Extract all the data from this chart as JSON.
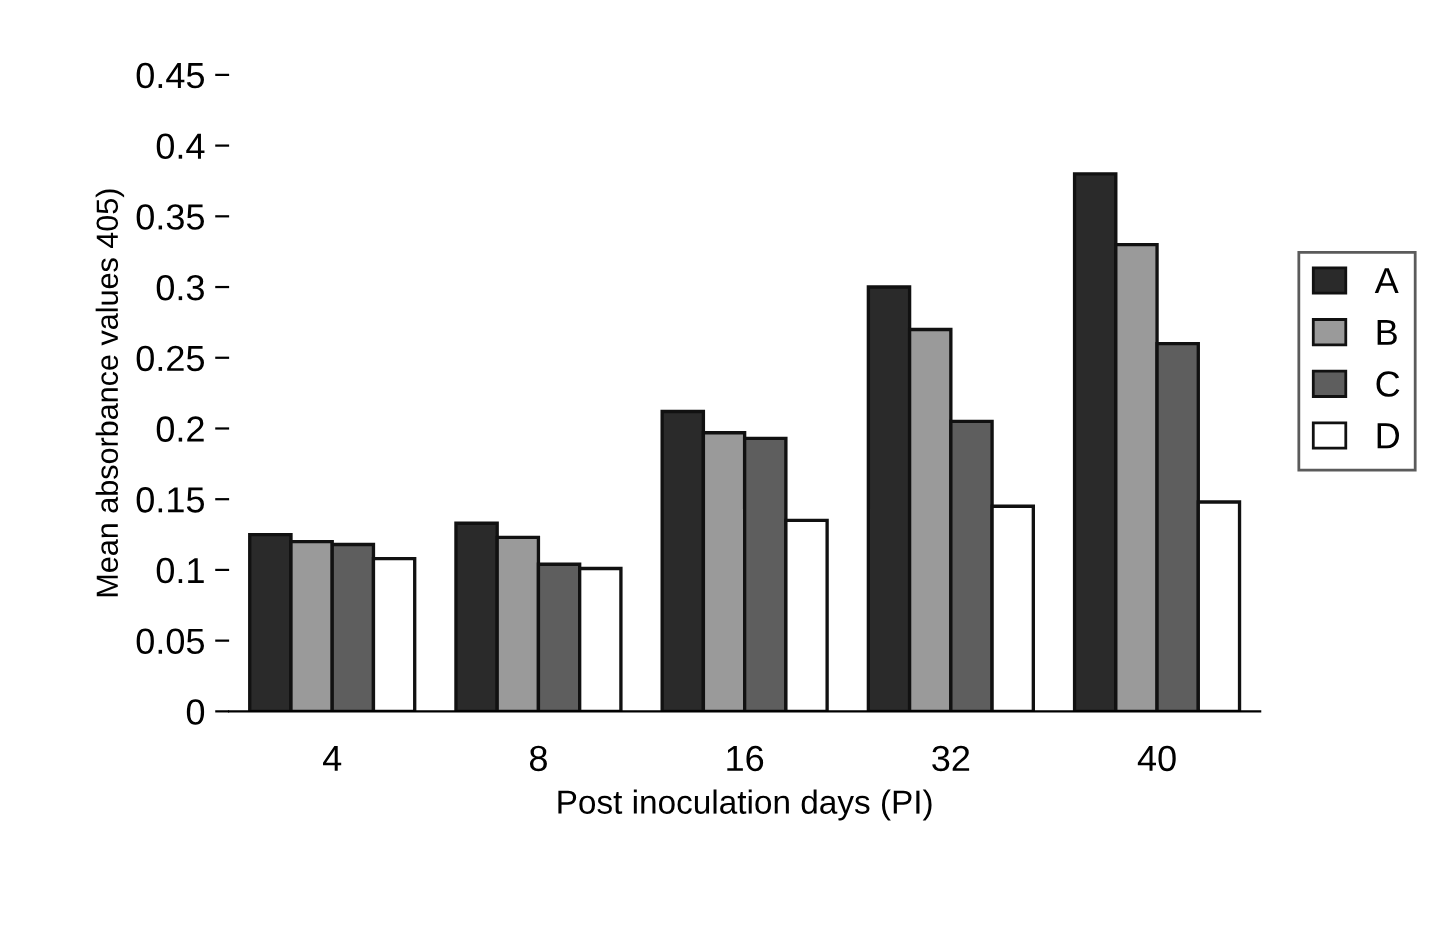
{
  "chart_data": {
    "type": "bar",
    "xlabel": "Post inoculation days (PI)",
    "ylabel": "Mean absorbance values 405)",
    "categories": [
      "4",
      "8",
      "16",
      "32",
      "40"
    ],
    "series": [
      {
        "name": "A",
        "color": "#2a2a2a",
        "values": [
          0.125,
          0.133,
          0.212,
          0.3,
          0.38
        ]
      },
      {
        "name": "B",
        "color": "#9a9a9a",
        "values": [
          0.12,
          0.123,
          0.197,
          0.27,
          0.33
        ]
      },
      {
        "name": "C",
        "color": "#5e5e5e",
        "values": [
          0.118,
          0.104,
          0.193,
          0.205,
          0.26
        ]
      },
      {
        "name": "D",
        "color": "#ffffff",
        "values": [
          0.108,
          0.101,
          0.135,
          0.145,
          0.148
        ]
      }
    ],
    "ylim": [
      0,
      0.45
    ],
    "yticks": [
      0,
      0.05,
      0.1,
      0.15,
      0.2,
      0.25,
      0.3,
      0.35,
      0.4,
      0.45
    ],
    "grid": false,
    "legend": "right"
  }
}
